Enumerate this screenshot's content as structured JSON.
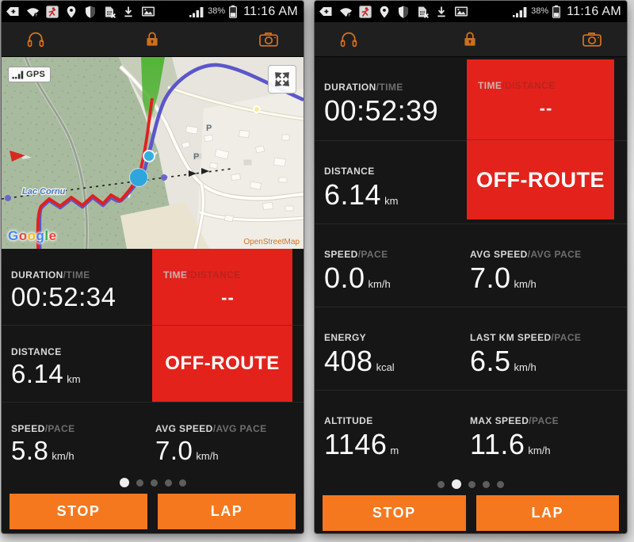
{
  "status_bar": {
    "time": "11:16 AM",
    "battery_percent": "38%",
    "icons": [
      "tag-plus",
      "wifi",
      "tracker-app",
      "location-pin",
      "shield",
      "sim-removed",
      "download",
      "gallery",
      "signal-strength",
      "battery"
    ]
  },
  "toolbar": {
    "icons": [
      "headphones",
      "lock",
      "camera"
    ]
  },
  "map": {
    "gps_label": "GPS",
    "lake_label": "Lac Cornu",
    "parking": "P",
    "google": "Google",
    "google_colors": [
      "#4285F4",
      "#EA4335",
      "#FBBC05",
      "#4285F4",
      "#34A853",
      "#EA4335"
    ],
    "attribution": "OpenStreetMap"
  },
  "colors": {
    "accent_orange": "#f5781e",
    "alert_red": "#e3221c",
    "route_red": "#e02020",
    "route_purple": "#5b57c9",
    "marker_blue": "#35aadd"
  },
  "left_screen": {
    "metrics": {
      "duration": {
        "label": "DURATION",
        "label_alt": "/TIME",
        "value": "00:52:34",
        "unit": ""
      },
      "distance": {
        "label": "DISTANCE",
        "label_alt": "",
        "value": "6.14",
        "unit": "km"
      },
      "speed": {
        "label": "SPEED",
        "label_alt": "/PACE",
        "value": "5.8",
        "unit": "km/h"
      },
      "avg_speed": {
        "label": "AVG SPEED",
        "label_alt": "/AVG PACE",
        "value": "7.0",
        "unit": "km/h"
      }
    },
    "alert": {
      "label": "TIME",
      "label_alt": "/DISTANCE",
      "value": "--",
      "status": "OFF-ROUTE"
    },
    "pager": {
      "dots": 5,
      "active_index": 0
    },
    "buttons": {
      "stop": "STOP",
      "lap": "LAP"
    }
  },
  "right_screen": {
    "metrics": {
      "duration": {
        "label": "DURATION",
        "label_alt": "/TIME",
        "value": "00:52:39",
        "unit": ""
      },
      "distance": {
        "label": "DISTANCE",
        "label_alt": "",
        "value": "6.14",
        "unit": "km"
      },
      "speed": {
        "label": "SPEED",
        "label_alt": "/PACE",
        "value": "0.0",
        "unit": "km/h"
      },
      "avg_speed": {
        "label": "AVG SPEED",
        "label_alt": "/AVG PACE",
        "value": "7.0",
        "unit": "km/h"
      },
      "energy": {
        "label": "ENERGY",
        "label_alt": "",
        "value": "408",
        "unit": "kcal"
      },
      "last_km_speed": {
        "label": "LAST KM SPEED",
        "label_alt": "/PACE",
        "value": "6.5",
        "unit": "km/h"
      },
      "altitude": {
        "label": "ALTITUDE",
        "label_alt": "",
        "value": "1146",
        "unit": "m"
      },
      "max_speed": {
        "label": "MAX SPEED",
        "label_alt": "/PACE",
        "value": "11.6",
        "unit": "km/h"
      }
    },
    "alert": {
      "label": "TIME",
      "label_alt": "/DISTANCE",
      "value": "--",
      "status": "OFF-ROUTE"
    },
    "pager": {
      "dots": 5,
      "active_index": 1
    },
    "buttons": {
      "stop": "STOP",
      "lap": "LAP"
    }
  }
}
